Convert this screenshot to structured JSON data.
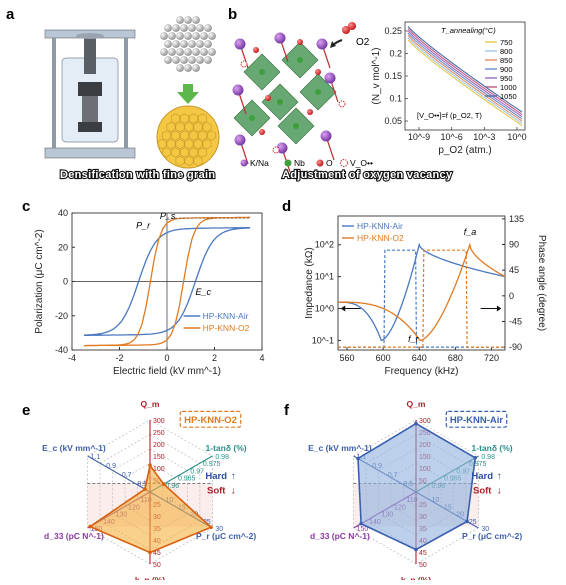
{
  "panels": {
    "a": {
      "letter": "a",
      "caption": "Densification with fine grain"
    },
    "b": {
      "letter": "b",
      "caption": "Adjustment of oxygen vacancy",
      "o2_label": "O2",
      "legend": [
        "K/Na",
        "Nb",
        "O",
        "V_O••"
      ],
      "inset_equation": "[V_O••]=f (p_O2, T)"
    },
    "c": {
      "letter": "c",
      "annot_ps": "P_s",
      "annot_pr": "P_r",
      "annot_ec": "E_c"
    },
    "d": {
      "letter": "d",
      "annot_fa": "f_a",
      "annot_fr": "f_r"
    },
    "e": {
      "letter": "e",
      "title": "HP-KNN-O2",
      "hard": "Hard",
      "soft": "Soft"
    },
    "f": {
      "letter": "f",
      "title": "HP-KNN-Air",
      "hard": "Hard",
      "soft": "Soft"
    }
  },
  "chart_data": [
    {
      "id": "b-inset",
      "type": "line",
      "xlabel": "p_O2 (atm.)",
      "ylabel": "(N_v mol^-1)",
      "x_scale": "log",
      "x_ticks": [
        "10^-9",
        "10^-6",
        "10^-3",
        "10^0"
      ],
      "y_ticks": [
        0.05,
        0.1,
        0.15,
        0.2,
        0.25
      ],
      "ylim": [
        0.03,
        0.27
      ],
      "legend_title": "T_annealing(°C)",
      "series": [
        {
          "name": "750",
          "color": "#e8c84a",
          "y0": 0.23,
          "y1": 0.04
        },
        {
          "name": "800",
          "color": "#9dc8e8",
          "y0": 0.235,
          "y1": 0.045
        },
        {
          "name": "850",
          "color": "#e38c6a",
          "y0": 0.24,
          "y1": 0.05
        },
        {
          "name": "900",
          "color": "#6a8fd0",
          "y0": 0.245,
          "y1": 0.055
        },
        {
          "name": "950",
          "color": "#9b6cc4",
          "y0": 0.25,
          "y1": 0.06
        },
        {
          "name": "1000",
          "color": "#c4587f",
          "y0": 0.255,
          "y1": 0.065
        },
        {
          "name": "1050",
          "color": "#4a6fa8",
          "y0": 0.26,
          "y1": 0.07
        }
      ]
    },
    {
      "id": "c",
      "type": "line",
      "xlabel": "Electric field (kV mm^-1)",
      "ylabel": "Polarization (μC cm^-2)",
      "xlim": [
        -4,
        4
      ],
      "ylim": [
        -40,
        40
      ],
      "x_ticks": [
        -4,
        -2,
        0,
        2,
        4
      ],
      "y_ticks": [
        -40,
        -20,
        0,
        20,
        40
      ],
      "series": [
        {
          "name": "HP-KNN-Air",
          "color": "#4a78c0",
          "Ps": 31,
          "Pr": 27,
          "Ec": 1.2,
          "Emax": 3.5
        },
        {
          "name": "HP-KNN-O2",
          "color": "#e07b22",
          "Ps": 37,
          "Pr": 32,
          "Ec": 0.7,
          "Emax": 3.5
        }
      ]
    },
    {
      "id": "d",
      "type": "line",
      "xlabel": "Frequency (kHz)",
      "ylabel": "Impedance (kΩ)",
      "y2label": "Phase angle (degree)",
      "xlim": [
        550,
        735
      ],
      "x_ticks": [
        560,
        600,
        640,
        680,
        720
      ],
      "y_log_ticks": [
        "10^-1",
        "10^0",
        "10^1",
        "10^2"
      ],
      "y2_ticks": [
        -90,
        -45,
        0,
        45,
        90,
        135
      ],
      "series": [
        {
          "name": "HP-KNN-Air",
          "color": "#4a78c0",
          "fr": 598,
          "fa": 640
        },
        {
          "name": "HP-KNN-O2",
          "color": "#e07b22",
          "fr": 641,
          "fa": 696
        }
      ]
    },
    {
      "id": "e",
      "type": "radar",
      "axes": [
        {
          "name": "Q_m",
          "ticks": [
            "50",
            "100",
            "150",
            "200",
            "250",
            "300"
          ],
          "color": "#b0202a"
        },
        {
          "name": "1-tanδ (%)",
          "ticks": [
            "0.96",
            "0.965",
            "0.97",
            "0.975",
            "0.98"
          ],
          "color": "#2a8f8a"
        },
        {
          "name": "P_r (μC cm^-2)",
          "ticks": [
            "10",
            "15",
            "20",
            "25",
            "30"
          ],
          "color": "#3d5fa8"
        },
        {
          "name": "k_p (%)",
          "ticks": [
            "25",
            "30",
            "35",
            "40",
            "45",
            "50"
          ],
          "color": "#b0202a"
        },
        {
          "name": "d_33 (pC N^-1)",
          "ticks": [
            "110",
            "120",
            "130",
            "140",
            "150"
          ],
          "color": "#8a3aa0"
        },
        {
          "name": "E_c (kV mm^-1)",
          "ticks": [
            "0.5",
            "0.7",
            "0.9",
            "1.1"
          ],
          "color": "#3d5fa8"
        }
      ],
      "fraction": [
        0.37,
        0.22,
        0.98,
        0.84,
        0.96,
        0.08
      ],
      "fill": "#f5b040",
      "stroke": "#d86010"
    },
    {
      "id": "f",
      "type": "radar",
      "axes": [
        {
          "name": "Q_m",
          "ticks": [
            "50",
            "100",
            "150",
            "200",
            "250",
            "300"
          ],
          "color": "#b0202a"
        },
        {
          "name": "1-tanδ (%)",
          "ticks": [
            "0.96",
            "0.965",
            "0.97",
            "0.975",
            "0.98"
          ],
          "color": "#2a8f8a"
        },
        {
          "name": "P_r (μC cm^-2)",
          "ticks": [
            "10",
            "15",
            "20",
            "25",
            "30"
          ],
          "color": "#3d5fa8"
        },
        {
          "name": "k_p (%)",
          "ticks": [
            "25",
            "30",
            "35",
            "40",
            "45",
            "50"
          ],
          "color": "#b0202a"
        },
        {
          "name": "d_33 (pC N^-1)",
          "ticks": [
            "110",
            "120",
            "130",
            "140",
            "150"
          ],
          "color": "#8a3aa0"
        },
        {
          "name": "E_c (kV mm^-1)",
          "ticks": [
            "0.5",
            "0.7",
            "0.9",
            "1.1"
          ],
          "color": "#3d5fa8"
        }
      ],
      "fraction": [
        0.95,
        0.95,
        0.82,
        0.8,
        0.88,
        0.93
      ],
      "fill": "#8fb0de",
      "stroke": "#3a5fb0"
    }
  ]
}
